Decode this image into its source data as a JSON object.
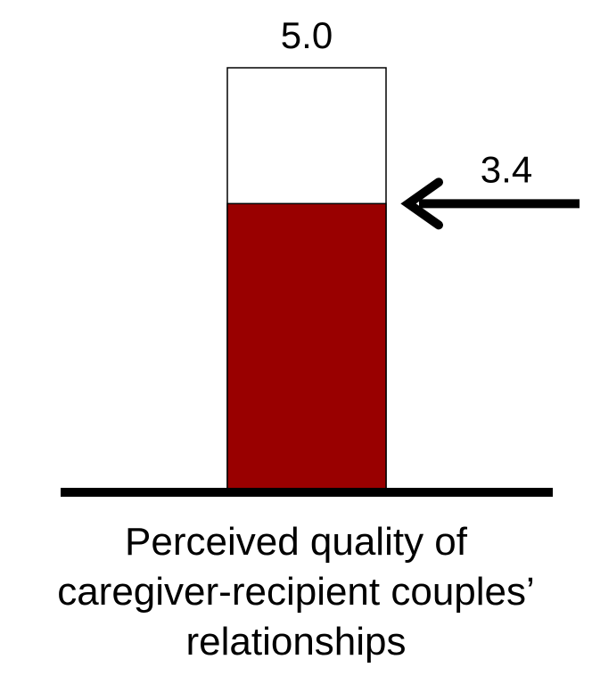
{
  "chart_data": {
    "type": "bar",
    "values": [
      3.4
    ],
    "color": "#990000",
    "ylim": [
      0,
      5
    ],
    "yticks": [
      {
        "value": 5,
        "label": "5.0"
      }
    ],
    "xlabel": [
      "Perceived quality of",
      "caregiver-recipient couples’",
      "relationships"
    ]
  }
}
